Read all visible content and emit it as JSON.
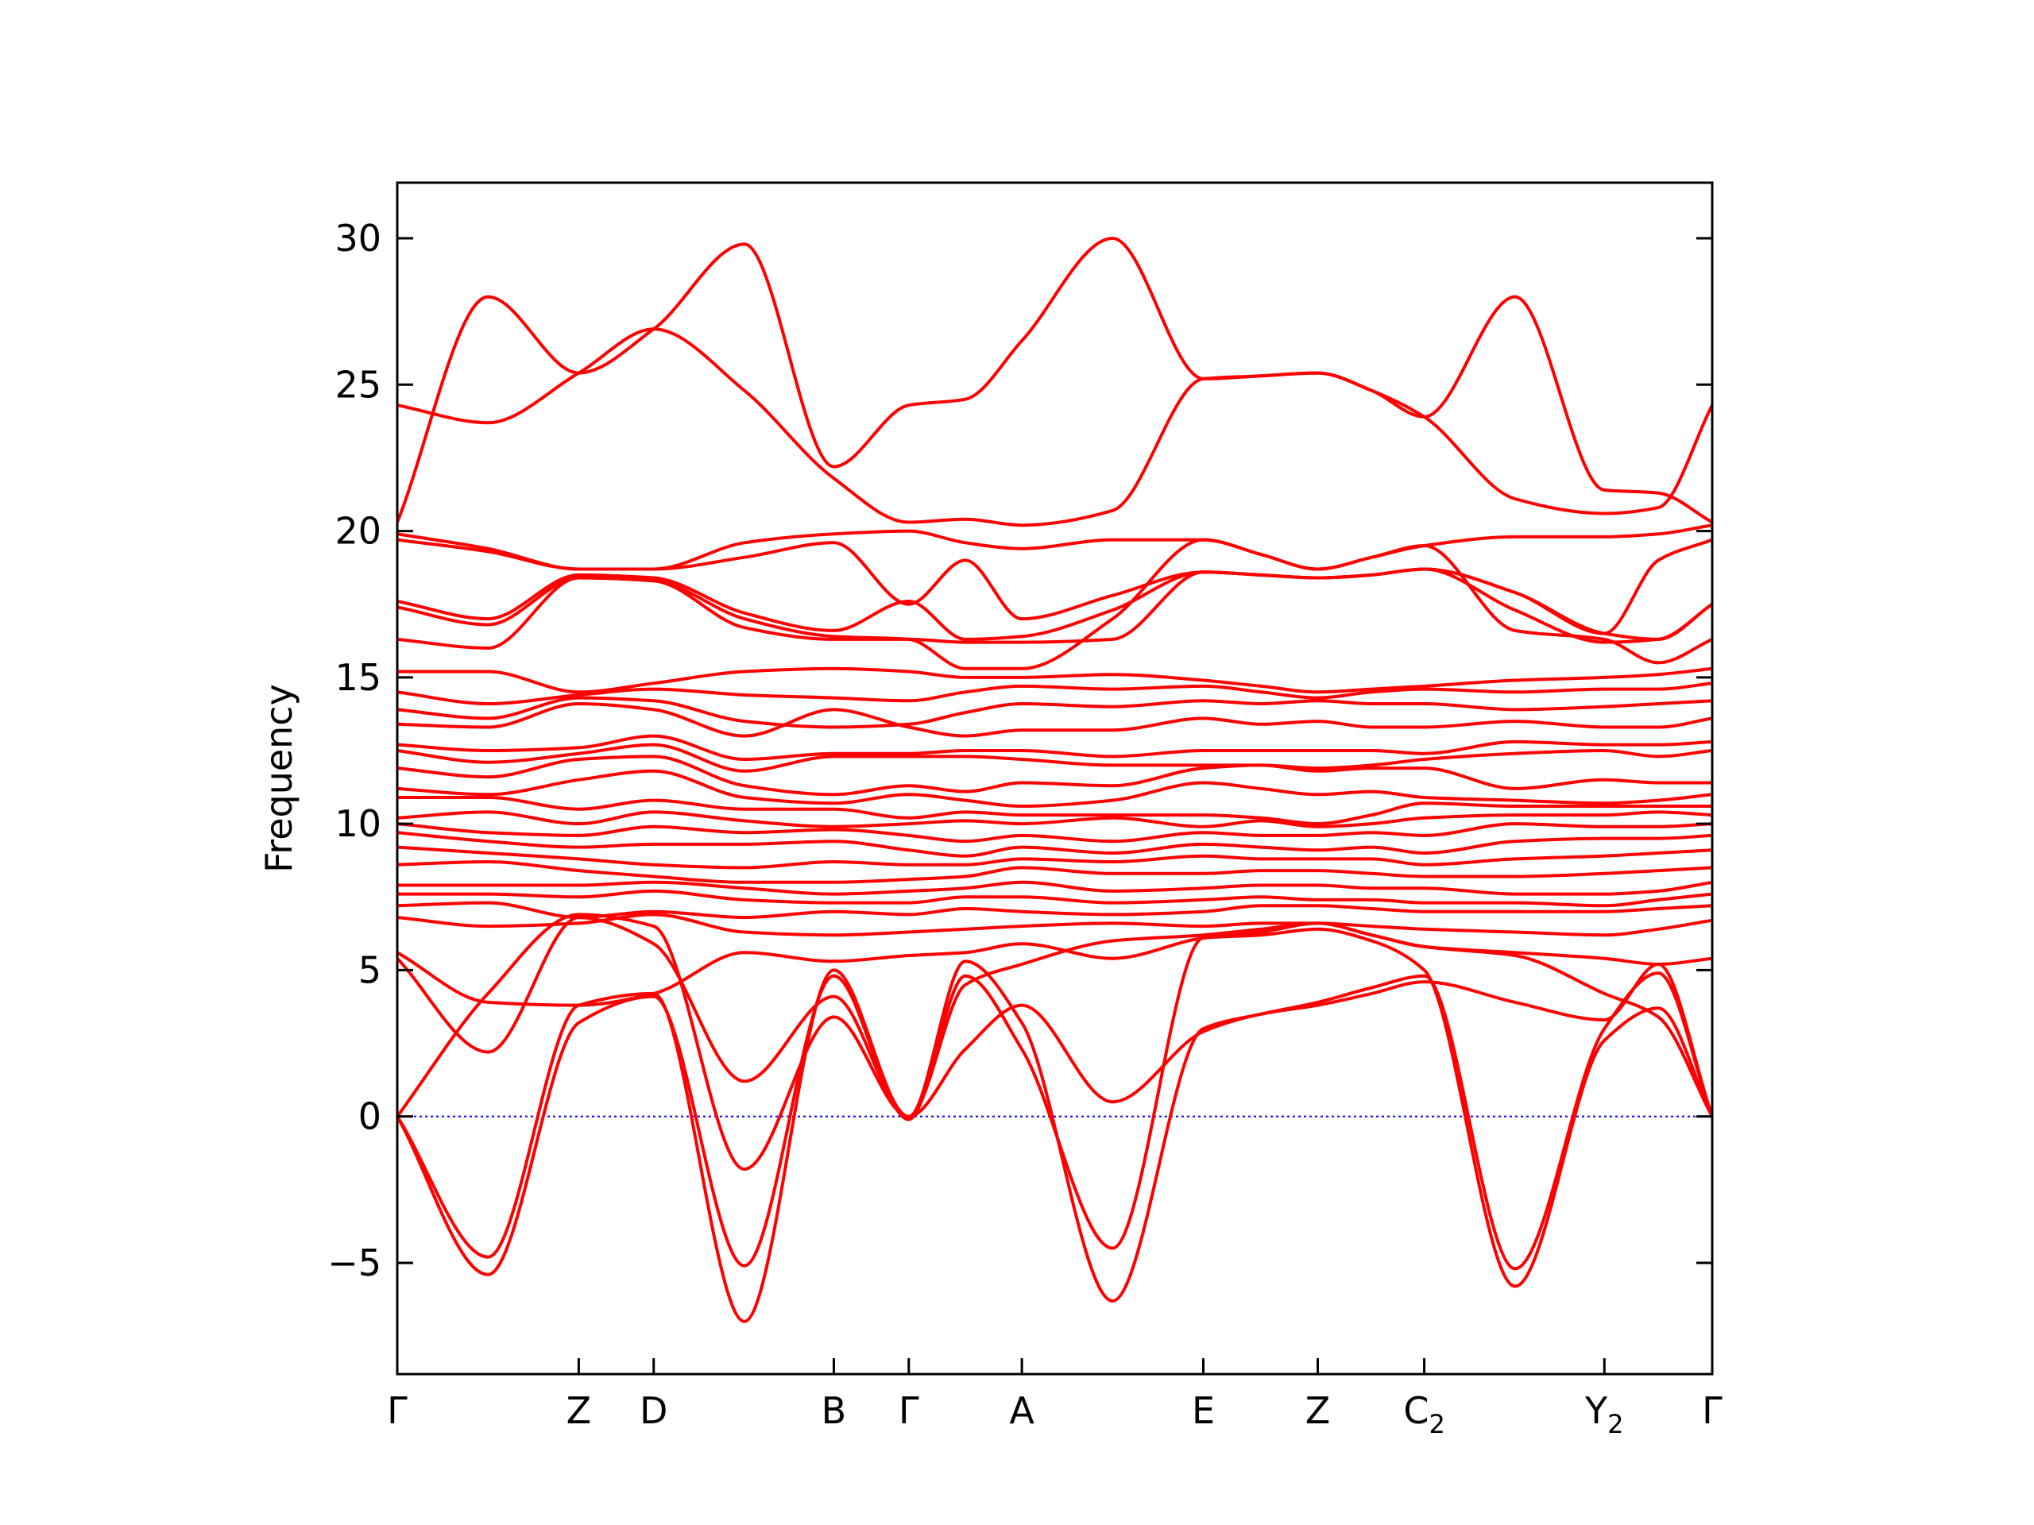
{
  "chart_data": {
    "type": "line",
    "title": "",
    "xlabel": "",
    "ylabel": "Frequency",
    "ylim": [
      -8.8,
      31.9
    ],
    "y_ticks": [
      -5,
      0,
      5,
      10,
      15,
      20,
      25,
      30
    ],
    "y_tick_labels": [
      "−5",
      "0",
      "5",
      "10",
      "15",
      "20",
      "25",
      "30"
    ],
    "grid": false,
    "legend": "none",
    "line_color": "#ff0000",
    "zero_line_color": "#0000ff",
    "high_symmetry_points": [
      {
        "label": "Γ",
        "pos": 0.0
      },
      {
        "label": "Z",
        "pos": 0.138
      },
      {
        "label": "D",
        "pos": 0.195
      },
      {
        "label": "B",
        "pos": 0.332
      },
      {
        "label": "Γ",
        "pos": 0.389
      },
      {
        "label": "A",
        "pos": 0.475
      },
      {
        "label": "E",
        "pos": 0.613
      },
      {
        "label": "Z",
        "pos": 0.7
      },
      {
        "label": "C",
        "sub": "2",
        "pos": 0.781
      },
      {
        "label": "Y",
        "sub": "2",
        "pos": 0.918
      },
      {
        "label": "Γ",
        "pos": 1.0
      }
    ],
    "series_x": [
      0.0,
      0.069,
      0.138,
      0.195,
      0.264,
      0.332,
      0.389,
      0.432,
      0.475,
      0.544,
      0.613,
      0.657,
      0.7,
      0.741,
      0.781,
      0.85,
      0.918,
      0.959,
      1.0
    ],
    "series": [
      {
        "values": [
          24.3,
          23.7,
          25.4,
          26.9,
          24.8,
          21.8,
          20.3,
          20.4,
          20.2,
          20.7,
          25.2,
          25.3,
          25.4,
          24.8,
          23.9,
          21.1,
          20.6,
          20.8,
          24.3
        ]
      },
      {
        "values": [
          20.3,
          28.0,
          25.4,
          26.9,
          29.8,
          22.2,
          24.3,
          24.5,
          26.5,
          30.0,
          25.2,
          25.3,
          25.4,
          24.8,
          23.9,
          28.0,
          21.4,
          21.3,
          20.3
        ]
      },
      {
        "values": [
          19.7,
          19.3,
          18.7,
          18.7,
          19.6,
          19.9,
          20.0,
          19.6,
          19.4,
          19.7,
          19.7,
          19.2,
          18.7,
          19.1,
          19.5,
          19.8,
          19.8,
          19.9,
          20.2
        ]
      },
      {
        "values": [
          19.9,
          19.4,
          18.7,
          18.7,
          19.1,
          19.6,
          17.5,
          19.0,
          17.0,
          17.8,
          18.6,
          18.5,
          18.4,
          18.5,
          18.7,
          17.9,
          16.5,
          19.0,
          19.7
        ]
      },
      {
        "values": [
          17.6,
          17.0,
          18.5,
          18.4,
          17.2,
          16.6,
          17.6,
          16.3,
          16.4,
          17.3,
          18.6,
          18.5,
          18.4,
          18.5,
          18.7,
          17.3,
          16.2,
          16.3,
          17.5
        ]
      },
      {
        "values": [
          17.4,
          16.8,
          18.4,
          18.3,
          17.0,
          16.4,
          16.3,
          15.3,
          15.3,
          17.0,
          19.7,
          19.2,
          18.7,
          19.1,
          19.5,
          16.6,
          16.3,
          15.5,
          16.3
        ]
      },
      {
        "values": [
          16.3,
          16.0,
          18.4,
          18.3,
          16.7,
          16.3,
          16.3,
          16.2,
          16.2,
          16.3,
          18.6,
          18.5,
          18.4,
          18.5,
          18.7,
          17.9,
          16.5,
          16.3,
          17.5
        ]
      },
      {
        "values": [
          15.2,
          15.2,
          14.5,
          14.8,
          15.2,
          15.3,
          15.2,
          15.0,
          15.0,
          15.1,
          14.9,
          14.7,
          14.5,
          14.6,
          14.7,
          14.9,
          15.0,
          15.1,
          15.3
        ]
      },
      {
        "values": [
          14.5,
          14.1,
          14.4,
          14.6,
          14.4,
          14.3,
          14.2,
          14.5,
          14.7,
          14.6,
          14.7,
          14.5,
          14.3,
          14.5,
          14.6,
          14.5,
          14.6,
          14.6,
          14.8
        ]
      },
      {
        "values": [
          13.9,
          13.6,
          14.3,
          14.2,
          13.5,
          13.3,
          13.4,
          13.8,
          14.1,
          14.0,
          14.2,
          14.1,
          14.2,
          14.1,
          14.1,
          13.9,
          14.0,
          14.1,
          14.2
        ]
      },
      {
        "values": [
          13.4,
          13.3,
          14.1,
          13.9,
          13.0,
          13.9,
          13.3,
          13.0,
          13.2,
          13.2,
          13.6,
          13.4,
          13.5,
          13.3,
          13.3,
          13.5,
          13.3,
          13.3,
          13.6
        ]
      },
      {
        "values": [
          12.7,
          12.5,
          12.6,
          13.0,
          12.2,
          12.4,
          12.4,
          12.5,
          12.5,
          12.3,
          12.5,
          12.5,
          12.5,
          12.5,
          12.4,
          12.8,
          12.7,
          12.7,
          12.8
        ]
      },
      {
        "values": [
          12.5,
          12.1,
          12.4,
          12.7,
          11.8,
          12.3,
          12.3,
          12.3,
          12.2,
          12.0,
          12.0,
          12.0,
          11.9,
          12.0,
          12.2,
          12.4,
          12.5,
          12.3,
          12.5
        ]
      },
      {
        "values": [
          11.9,
          11.6,
          12.2,
          12.3,
          11.3,
          11.0,
          11.3,
          11.1,
          11.4,
          11.3,
          11.9,
          12.0,
          11.8,
          11.9,
          11.9,
          11.2,
          11.5,
          11.4,
          11.4
        ]
      },
      {
        "values": [
          11.2,
          11.0,
          11.5,
          11.8,
          10.9,
          10.7,
          11.0,
          10.8,
          10.6,
          10.8,
          11.4,
          11.2,
          11.0,
          11.1,
          10.9,
          10.8,
          10.7,
          10.8,
          11.0
        ]
      },
      {
        "values": [
          10.9,
          10.9,
          10.5,
          10.8,
          10.5,
          10.5,
          10.2,
          10.4,
          10.3,
          10.3,
          10.3,
          10.2,
          10.0,
          10.3,
          10.7,
          10.6,
          10.6,
          10.6,
          10.6
        ]
      },
      {
        "values": [
          10.2,
          10.4,
          10.0,
          10.4,
          10.1,
          9.9,
          10.0,
          10.1,
          10.0,
          10.2,
          9.9,
          10.1,
          9.9,
          10.0,
          10.2,
          10.3,
          10.3,
          10.4,
          10.3
        ]
      },
      {
        "values": [
          10.0,
          9.7,
          9.6,
          9.9,
          9.7,
          9.8,
          9.6,
          9.4,
          9.6,
          9.4,
          9.7,
          9.6,
          9.6,
          9.7,
          9.6,
          10.0,
          9.9,
          9.9,
          10.0
        ]
      },
      {
        "values": [
          9.7,
          9.4,
          9.2,
          9.3,
          9.3,
          9.4,
          9.1,
          8.9,
          9.2,
          9.0,
          9.3,
          9.2,
          9.1,
          9.2,
          9.0,
          9.4,
          9.5,
          9.5,
          9.6
        ]
      },
      {
        "values": [
          9.2,
          9.0,
          8.8,
          8.6,
          8.5,
          8.7,
          8.6,
          8.6,
          8.8,
          8.7,
          8.9,
          8.8,
          8.8,
          8.8,
          8.6,
          8.8,
          8.9,
          9.0,
          9.1
        ]
      },
      {
        "values": [
          8.6,
          8.7,
          8.4,
          8.2,
          8.0,
          8.0,
          8.1,
          8.2,
          8.5,
          8.3,
          8.3,
          8.4,
          8.4,
          8.3,
          8.2,
          8.2,
          8.3,
          8.4,
          8.5
        ]
      },
      {
        "values": [
          7.9,
          7.9,
          7.9,
          8.0,
          7.8,
          7.6,
          7.7,
          7.8,
          8.0,
          7.7,
          7.8,
          7.9,
          7.9,
          7.8,
          7.8,
          7.6,
          7.6,
          7.7,
          8.0
        ]
      },
      {
        "values": [
          7.6,
          7.6,
          7.5,
          7.7,
          7.4,
          7.3,
          7.3,
          7.5,
          7.5,
          7.3,
          7.4,
          7.5,
          7.4,
          7.4,
          7.3,
          7.3,
          7.2,
          7.4,
          7.6
        ]
      },
      {
        "values": [
          7.2,
          7.3,
          6.8,
          7.0,
          6.8,
          7.0,
          6.9,
          7.1,
          7.0,
          6.9,
          7.0,
          7.2,
          7.2,
          7.1,
          7.0,
          7.0,
          7.0,
          7.1,
          7.2
        ]
      },
      {
        "values": [
          6.8,
          6.5,
          6.6,
          6.9,
          6.3,
          6.2,
          6.3,
          6.4,
          6.5,
          6.6,
          6.5,
          6.6,
          6.6,
          6.5,
          6.4,
          6.3,
          6.2,
          6.4,
          6.7
        ]
      },
      {
        "values": [
          5.6,
          3.9,
          3.8,
          4.2,
          5.6,
          5.3,
          5.5,
          5.6,
          5.9,
          5.4,
          6.1,
          6.3,
          6.6,
          6.2,
          5.8,
          5.6,
          5.4,
          5.2,
          5.4
        ]
      },
      {
        "values": [
          5.4,
          2.2,
          6.8,
          5.9,
          1.2,
          4.1,
          0.0,
          2.3,
          3.8,
          0.5,
          2.9,
          3.5,
          3.8,
          4.2,
          4.6,
          3.9,
          3.3,
          5.2,
          0.0
        ]
      },
      {
        "values": [
          0.0,
          4.2,
          6.9,
          6.5,
          -1.8,
          3.4,
          0.0,
          4.5,
          5.2,
          6.0,
          6.2,
          6.4,
          6.6,
          6.2,
          5.8,
          5.5,
          4.2,
          3.4,
          0.0
        ]
      },
      {
        "values": [
          0.0,
          -5.4,
          3.2,
          4.1,
          -5.1,
          4.8,
          -0.1,
          4.8,
          2.3,
          -4.5,
          6.1,
          6.2,
          6.4,
          6.0,
          5.0,
          -5.8,
          2.6,
          3.7,
          0.0
        ]
      },
      {
        "values": [
          0.0,
          -4.8,
          3.8,
          4.2,
          -7.0,
          5.0,
          0.0,
          5.3,
          3.2,
          -6.3,
          3.0,
          3.5,
          3.9,
          4.4,
          4.8,
          -5.2,
          3.0,
          4.9,
          0.0
        ]
      }
    ]
  }
}
